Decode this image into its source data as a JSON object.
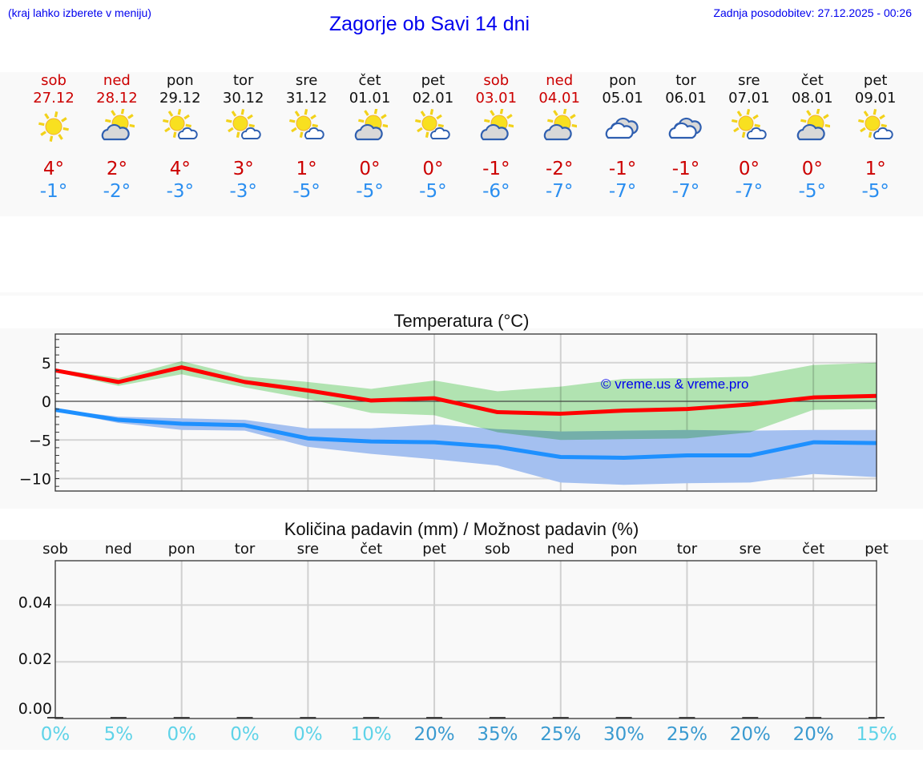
{
  "header": {
    "hint": "(kraj lahko izberete v meniju)",
    "title": "Zagorje ob Savi 14 dni",
    "updated": "Zadnja posodobitev: 27.12.2025 - 00:26"
  },
  "days": [
    {
      "name": "sob",
      "date": "27.12",
      "icon": "sunny-icon",
      "max": "4°",
      "min": "-1°",
      "weekend": true
    },
    {
      "name": "ned",
      "date": "28.12",
      "icon": "sun-behind-cloud-icon",
      "max": "2°",
      "min": "-2°",
      "weekend": true
    },
    {
      "name": "pon",
      "date": "29.12",
      "icon": "sun-small-cloud-icon",
      "max": "4°",
      "min": "-3°",
      "weekend": false
    },
    {
      "name": "tor",
      "date": "30.12",
      "icon": "sun-small-cloud-icon",
      "max": "3°",
      "min": "-3°",
      "weekend": false
    },
    {
      "name": "sre",
      "date": "31.12",
      "icon": "sun-small-cloud-icon",
      "max": "1°",
      "min": "-5°",
      "weekend": false
    },
    {
      "name": "čet",
      "date": "01.01",
      "icon": "sun-behind-cloud-icon",
      "max": "0°",
      "min": "-5°",
      "weekend": false
    },
    {
      "name": "pet",
      "date": "02.01",
      "icon": "sun-small-cloud-icon",
      "max": "0°",
      "min": "-5°",
      "weekend": false
    },
    {
      "name": "sob",
      "date": "03.01",
      "icon": "sun-behind-cloud-icon",
      "max": "-1°",
      "min": "-6°",
      "weekend": true
    },
    {
      "name": "ned",
      "date": "04.01",
      "icon": "sun-behind-cloud-icon",
      "max": "-2°",
      "min": "-7°",
      "weekend": true
    },
    {
      "name": "pon",
      "date": "05.01",
      "icon": "cloudy-icon",
      "max": "-1°",
      "min": "-7°",
      "weekend": false
    },
    {
      "name": "tor",
      "date": "06.01",
      "icon": "cloudy-icon",
      "max": "-1°",
      "min": "-7°",
      "weekend": false
    },
    {
      "name": "sre",
      "date": "07.01",
      "icon": "sun-small-cloud-icon",
      "max": "0°",
      "min": "-7°",
      "weekend": false
    },
    {
      "name": "čet",
      "date": "08.01",
      "icon": "sun-behind-cloud-icon",
      "max": "0°",
      "min": "-5°",
      "weekend": false
    },
    {
      "name": "pet",
      "date": "09.01",
      "icon": "sun-small-cloud-icon",
      "max": "1°",
      "min": "-5°",
      "weekend": false
    }
  ],
  "colors": {
    "weekend": "#cc0000",
    "max_temp": "#cc0000",
    "min_temp": "#2a8ef0",
    "max_line": "#ff0000",
    "min_line": "#1e90ff",
    "max_band": "#a8e6a8",
    "min_band": "#a4c0f0",
    "overlap_band": "#7dc8a8",
    "prob_low": "#5fd3e8",
    "prob_high": "#3a9ad0",
    "link": "#0000ee"
  },
  "chart_data": [
    {
      "type": "line",
      "title": "Temperatura (°C)",
      "xlabel": "",
      "ylabel": "",
      "categories": [
        "27.12",
        "28.12",
        "29.12",
        "30.12",
        "31.12",
        "01.01",
        "02.01",
        "03.01",
        "04.01",
        "05.01",
        "06.01",
        "07.01",
        "08.01",
        "09.01"
      ],
      "ylim": [
        -12,
        8.5
      ],
      "yticks": [
        5,
        0,
        -5,
        -10
      ],
      "ytick_labels": [
        "5",
        "0",
        "−5",
        "−10"
      ],
      "grid": true,
      "watermark": "© vreme.us & vreme.pro",
      "series": [
        {
          "name": "max",
          "color": "#ff0000",
          "values": [
            4.0,
            2.5,
            4.4,
            2.5,
            1.4,
            0.1,
            0.4,
            -1.4,
            -1.6,
            -1.2,
            -1.0,
            -0.4,
            0.5,
            0.7
          ]
        },
        {
          "name": "min",
          "color": "#1e90ff",
          "values": [
            -1.1,
            -2.4,
            -2.9,
            -3.1,
            -4.8,
            -5.2,
            -5.3,
            -5.9,
            -7.2,
            -7.3,
            -7.0,
            -7.0,
            -5.3,
            -5.4
          ]
        }
      ],
      "bands": [
        {
          "name": "max_range",
          "color": "#a8e6a8",
          "upper": [
            4.2,
            3.0,
            5.2,
            3.2,
            2.5,
            1.6,
            2.7,
            1.3,
            1.9,
            2.9,
            3.0,
            3.2,
            4.7,
            5.0
          ],
          "lower": [
            3.8,
            2.0,
            3.5,
            1.8,
            0.3,
            -1.5,
            -1.8,
            -4.0,
            -5.0,
            -4.9,
            -4.8,
            -4.0,
            -1.1,
            -1.0
          ]
        },
        {
          "name": "min_range",
          "color": "#a4c0f0",
          "upper": [
            -1.0,
            -2.0,
            -2.2,
            -2.4,
            -3.5,
            -3.5,
            -3.0,
            -3.6,
            -3.9,
            -3.8,
            -3.7,
            -3.8,
            -3.7,
            -3.7
          ],
          "lower": [
            -1.2,
            -2.8,
            -3.7,
            -3.8,
            -5.9,
            -6.8,
            -7.5,
            -8.3,
            -10.5,
            -10.8,
            -10.6,
            -10.5,
            -9.4,
            -9.8
          ]
        }
      ]
    },
    {
      "type": "bar",
      "title": "Količina padavin (mm) / Možnost padavin (%)",
      "categories": [
        "sob",
        "ned",
        "pon",
        "tor",
        "sre",
        "čet",
        "pet",
        "sob",
        "ned",
        "pon",
        "tor",
        "sre",
        "čet",
        "pet"
      ],
      "values": [
        0,
        0,
        0,
        0,
        0,
        0,
        0,
        0,
        0,
        0,
        0,
        0,
        0,
        0
      ],
      "probability": [
        "0%",
        "5%",
        "0%",
        "0%",
        "0%",
        "10%",
        "20%",
        "35%",
        "25%",
        "30%",
        "25%",
        "20%",
        "20%",
        "15%"
      ],
      "ylabel": "",
      "ylim": [
        0,
        0.055
      ],
      "yticks": [
        "0.00",
        "0.02",
        "0.04"
      ],
      "grid": true
    }
  ]
}
